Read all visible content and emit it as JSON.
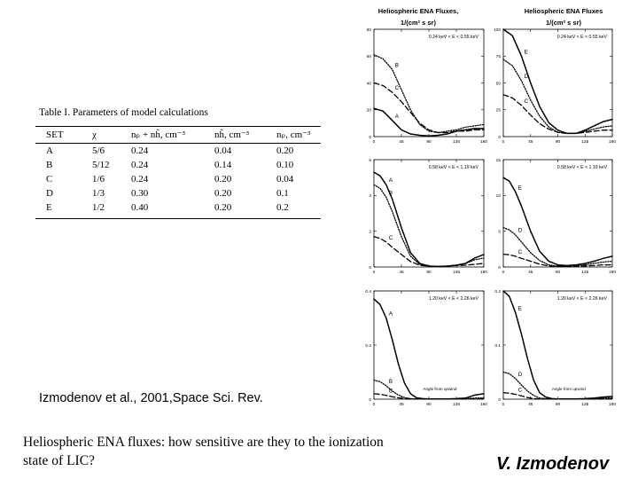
{
  "table": {
    "title": "Table I.  Parameters of model calculations",
    "headers": [
      "SET",
      "χ",
      "nₚ + nĥ, cm⁻³",
      "nĥ, cm⁻³",
      "nₚ, cm⁻³"
    ],
    "rows": [
      [
        "A",
        "5/6",
        "0.24",
        "0.04",
        "0.20"
      ],
      [
        "B",
        "5/12",
        "0.24",
        "0.14",
        "0.10"
      ],
      [
        "C",
        "1/6",
        "0.24",
        "0.20",
        "0.04"
      ],
      [
        "D",
        "1/3",
        "0.30",
        "0.20",
        "0.1"
      ],
      [
        "E",
        "1/2",
        "0.40",
        "0.20",
        "0.2"
      ]
    ]
  },
  "citation": "Izmodenov et al., 2001,Space Sci. Rev.",
  "question": "Heliospheric ENA fluxes: how sensitive are they to the ionization state of LIC?",
  "author": "V. Izmodenov",
  "column_headers": [
    {
      "line1": "Heliospheric ENA Fluxes,",
      "line2": "1/(cm² s sr)"
    },
    {
      "line1": "Heliospheric ENA Fluxes",
      "line2": "1/(cm² s sr)"
    }
  ],
  "chart_data": [
    {
      "type": "line",
      "title": "0.24 keV < E < 0.55 keV",
      "ylim": [
        0,
        80
      ],
      "yticks": [
        0,
        20,
        40,
        60,
        80
      ],
      "xlabel": "",
      "xlim": [
        0,
        180
      ],
      "xticks": [
        0,
        45,
        90,
        135,
        180
      ],
      "series": [
        {
          "name": "A",
          "style": "solid",
          "x": [
            0,
            15,
            30,
            45,
            60,
            75,
            90,
            105,
            120,
            135,
            150,
            165,
            180
          ],
          "y": [
            21,
            19,
            12,
            5,
            2,
            1,
            0.5,
            1,
            2,
            4,
            5,
            6,
            6
          ]
        },
        {
          "name": "B",
          "style": "dot",
          "x": [
            0,
            15,
            30,
            45,
            60,
            75,
            90,
            105,
            120,
            135,
            150,
            165,
            180
          ],
          "y": [
            61,
            58,
            50,
            35,
            20,
            9,
            4,
            3,
            4,
            5,
            7,
            8,
            9
          ]
        },
        {
          "name": "C",
          "style": "dash",
          "x": [
            0,
            15,
            30,
            45,
            60,
            75,
            90,
            105,
            120,
            135,
            150,
            165,
            180
          ],
          "y": [
            40,
            38,
            33,
            26,
            18,
            10,
            5,
            3,
            3,
            4,
            4,
            5,
            5
          ]
        }
      ]
    },
    {
      "type": "line",
      "title": "0.24 keV < E < 0.55 keV",
      "ylim": [
        0,
        100
      ],
      "yticks": [
        0,
        25,
        50,
        75,
        100
      ],
      "xlabel": "",
      "xlim": [
        0,
        180
      ],
      "xticks": [
        0,
        45,
        90,
        135,
        180
      ],
      "series": [
        {
          "name": "E",
          "style": "solid",
          "x": [
            0,
            15,
            30,
            45,
            60,
            75,
            90,
            105,
            120,
            135,
            150,
            165,
            180
          ],
          "y": [
            100,
            94,
            75,
            50,
            28,
            13,
            6,
            3,
            3,
            6,
            10,
            14,
            16
          ]
        },
        {
          "name": "D",
          "style": "dot",
          "x": [
            0,
            15,
            30,
            45,
            60,
            75,
            90,
            105,
            120,
            135,
            150,
            165,
            180
          ],
          "y": [
            72,
            66,
            52,
            34,
            19,
            9,
            4,
            3,
            3,
            5,
            7,
            9,
            10
          ]
        },
        {
          "name": "C",
          "style": "dash",
          "x": [
            0,
            15,
            30,
            45,
            60,
            75,
            90,
            105,
            120,
            135,
            150,
            165,
            180
          ],
          "y": [
            39,
            36,
            29,
            20,
            12,
            7,
            4,
            3,
            3,
            4,
            5,
            6,
            6
          ]
        }
      ]
    },
    {
      "type": "line",
      "title": "0.58 keV < E < 1.19 keV",
      "ylim": [
        0,
        6
      ],
      "yticks": [
        0,
        2,
        4,
        6
      ],
      "xlabel": "",
      "xlim": [
        0,
        180
      ],
      "xticks": [
        0,
        45,
        90,
        135,
        180
      ],
      "series": [
        {
          "name": "A",
          "style": "solid",
          "x": [
            0,
            10,
            20,
            30,
            45,
            60,
            75,
            90,
            105,
            120,
            135,
            150,
            165,
            180
          ],
          "y": [
            5.3,
            5.1,
            4.6,
            3.8,
            2.2,
            0.8,
            0.2,
            0.05,
            0.03,
            0.05,
            0.1,
            0.2,
            0.5,
            0.7
          ]
        },
        {
          "name": "B",
          "style": "dot",
          "x": [
            0,
            10,
            20,
            30,
            45,
            60,
            75,
            90,
            105,
            120,
            135,
            150,
            165,
            180
          ],
          "y": [
            4.6,
            4.4,
            3.9,
            3.1,
            1.7,
            0.6,
            0.15,
            0.05,
            0.03,
            0.05,
            0.1,
            0.2,
            0.4,
            0.5
          ]
        },
        {
          "name": "C",
          "style": "dash",
          "x": [
            0,
            10,
            20,
            30,
            45,
            60,
            75,
            90,
            105,
            120,
            135,
            150,
            165,
            180
          ],
          "y": [
            1.7,
            1.6,
            1.4,
            1.1,
            0.7,
            0.3,
            0.1,
            0.05,
            0.03,
            0.05,
            0.08,
            0.1,
            0.15,
            0.2
          ]
        }
      ]
    },
    {
      "type": "line",
      "title": "0.58 keV < E < 1.19 keV",
      "ylim": [
        0,
        15
      ],
      "yticks": [
        0,
        5,
        10,
        15
      ],
      "xlabel": "",
      "xlim": [
        0,
        180
      ],
      "xticks": [
        0,
        45,
        90,
        135,
        180
      ],
      "series": [
        {
          "name": "E",
          "style": "solid",
          "x": [
            0,
            10,
            20,
            30,
            45,
            60,
            75,
            90,
            105,
            120,
            135,
            150,
            165,
            180
          ],
          "y": [
            12.5,
            12,
            10.5,
            8.5,
            5,
            2.2,
            0.8,
            0.3,
            0.2,
            0.3,
            0.5,
            0.8,
            1.2,
            1.5
          ]
        },
        {
          "name": "D",
          "style": "dot",
          "x": [
            0,
            10,
            20,
            30,
            45,
            60,
            75,
            90,
            105,
            120,
            135,
            150,
            165,
            180
          ],
          "y": [
            5.5,
            5.2,
            4.5,
            3.5,
            2,
            0.9,
            0.3,
            0.1,
            0.1,
            0.2,
            0.3,
            0.5,
            0.7,
            0.8
          ]
        },
        {
          "name": "C",
          "style": "dash",
          "x": [
            0,
            10,
            20,
            30,
            45,
            60,
            75,
            90,
            105,
            120,
            135,
            150,
            165,
            180
          ],
          "y": [
            1.8,
            1.7,
            1.5,
            1.2,
            0.8,
            0.4,
            0.15,
            0.1,
            0.05,
            0.1,
            0.15,
            0.2,
            0.3,
            0.3
          ]
        }
      ]
    },
    {
      "type": "line",
      "title": "1.20 keV < E < 2.26 keV",
      "ylim": [
        0,
        0.4
      ],
      "yticks": [
        0,
        0.2,
        0.4
      ],
      "xlabel": "Angle from upwind",
      "xlim": [
        0,
        180
      ],
      "xticks": [
        0,
        45,
        90,
        135,
        180
      ],
      "series": [
        {
          "name": "A",
          "style": "solid",
          "x": [
            0,
            10,
            20,
            30,
            40,
            50,
            60,
            70,
            80,
            90,
            105,
            120,
            135,
            150,
            165,
            180
          ],
          "y": [
            0.37,
            0.35,
            0.3,
            0.22,
            0.13,
            0.06,
            0.02,
            0.005,
            0.002,
            0.001,
            0.001,
            0.001,
            0.002,
            0.004,
            0.015,
            0.02
          ]
        },
        {
          "name": "B",
          "style": "dot",
          "x": [
            0,
            10,
            20,
            30,
            40,
            50,
            60,
            70,
            80,
            90,
            105,
            120,
            135,
            150,
            165,
            180
          ],
          "y": [
            0.07,
            0.065,
            0.05,
            0.03,
            0.015,
            0.006,
            0.002,
            0.001,
            0.001,
            0.001,
            0.001,
            0.001,
            0.001,
            0.002,
            0.004,
            0.005
          ]
        },
        {
          "name": "C",
          "style": "dash",
          "x": [
            0,
            10,
            20,
            30,
            40,
            50,
            60,
            70,
            80,
            90,
            105,
            120,
            135,
            150,
            165,
            180
          ],
          "y": [
            0.02,
            0.018,
            0.014,
            0.009,
            0.005,
            0.002,
            0.001,
            0.0005,
            0.0003,
            0.0002,
            0.0002,
            0.0002,
            0.0003,
            0.0005,
            0.001,
            0.001
          ]
        }
      ]
    },
    {
      "type": "line",
      "title": "1.20 keV < E < 2.26 keV",
      "ylim": [
        0,
        0.2
      ],
      "yticks": [
        0,
        0.1,
        0.2
      ],
      "xlabel": "Angle from upwind",
      "xlim": [
        0,
        180
      ],
      "xticks": [
        0,
        45,
        90,
        135,
        180
      ],
      "series": [
        {
          "name": "E",
          "style": "solid",
          "x": [
            0,
            10,
            20,
            30,
            40,
            50,
            60,
            70,
            80,
            90,
            105,
            120,
            135,
            150,
            165,
            180
          ],
          "y": [
            0.2,
            0.19,
            0.16,
            0.12,
            0.075,
            0.035,
            0.012,
            0.004,
            0.001,
            0.0005,
            0.0005,
            0.0005,
            0.001,
            0.002,
            0.004,
            0.005
          ]
        },
        {
          "name": "D",
          "style": "dot",
          "x": [
            0,
            10,
            20,
            30,
            40,
            50,
            60,
            70,
            80,
            90,
            105,
            120,
            135,
            150,
            165,
            180
          ],
          "y": [
            0.05,
            0.047,
            0.038,
            0.026,
            0.015,
            0.007,
            0.002,
            0.001,
            0.0005,
            0.0003,
            0.0003,
            0.0003,
            0.0005,
            0.001,
            0.002,
            0.002
          ]
        },
        {
          "name": "C",
          "style": "dash",
          "x": [
            0,
            10,
            20,
            30,
            40,
            50,
            60,
            70,
            80,
            90,
            105,
            120,
            135,
            150,
            165,
            180
          ],
          "y": [
            0.012,
            0.011,
            0.009,
            0.006,
            0.003,
            0.001,
            0.0005,
            0.0002,
            0.0001,
            0.0001,
            0.0001,
            0.0001,
            0.0001,
            0.0002,
            0.0004,
            0.0005
          ]
        }
      ]
    }
  ]
}
